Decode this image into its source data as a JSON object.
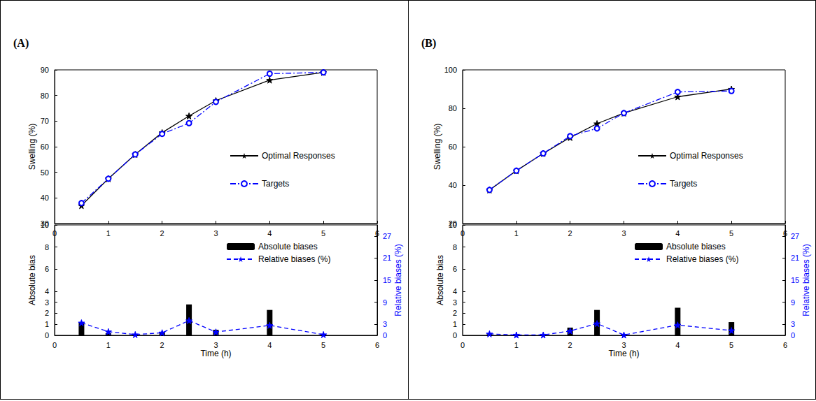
{
  "chart_data": [
    {
      "type": "line",
      "title": "(A)",
      "ylabel": "Swelling (%)",
      "x": [
        0.5,
        1,
        1.5,
        2,
        2.5,
        3,
        4,
        5
      ],
      "series": [
        {
          "name": "Optimal Responses",
          "color": "#000000",
          "marker": "star",
          "line_style": "solid",
          "values": [
            37,
            47.5,
            57,
            65.5,
            72,
            78,
            86,
            89
          ]
        },
        {
          "name": "Targets",
          "color": "#0000ff",
          "marker": "circle",
          "line_style": "dashdot",
          "values": [
            38,
            47.5,
            57,
            65,
            69.2,
            77.5,
            88.5,
            89
          ]
        }
      ],
      "xlim": [
        0,
        6
      ],
      "xticks": [
        0,
        1,
        2,
        3,
        4,
        5,
        6
      ],
      "ylim": [
        30,
        90
      ],
      "yticks": [
        30,
        40,
        50,
        60,
        70,
        80,
        90
      ],
      "grid": false,
      "legend": "right"
    },
    {
      "type": "bar",
      "xlabel": "Time (h)",
      "ylabel": "Absolute bias",
      "y2label": "Relative biases (%)",
      "x": [
        0.5,
        1,
        1.5,
        2,
        2.5,
        3,
        4,
        5
      ],
      "series": [
        {
          "name": "Absolute biases",
          "type": "bar",
          "color": "#000000",
          "values": [
            1.2,
            0.2,
            0.05,
            0.3,
            2.8,
            0.5,
            2.3,
            0.1
          ]
        },
        {
          "name": "Relative biases (%)",
          "type": "line",
          "axis": "y2",
          "color": "#0000ff",
          "marker": "star",
          "line_style": "dashed",
          "values": [
            3.4,
            1.0,
            0.2,
            0.7,
            4.0,
            0.9,
            2.7,
            0.2
          ]
        }
      ],
      "xlim": [
        0,
        6
      ],
      "xticks": [
        0,
        1,
        2,
        3,
        4,
        5,
        6
      ],
      "ylim": [
        0,
        10
      ],
      "yticks": [
        0,
        1,
        2,
        3,
        4,
        6,
        8,
        10
      ],
      "y2lim": [
        0,
        30
      ],
      "y2ticks": [
        0,
        3,
        9,
        15,
        21,
        27
      ],
      "grid": false,
      "legend": "upper right"
    },
    {
      "type": "line",
      "title": "(B)",
      "ylabel": "Swelling (%)",
      "x": [
        0.5,
        1,
        1.5,
        2,
        2.5,
        3,
        4,
        5
      ],
      "series": [
        {
          "name": "Optimal Responses",
          "color": "#000000",
          "marker": "star",
          "line_style": "solid",
          "values": [
            37.5,
            47.5,
            56.5,
            64.8,
            72,
            77.5,
            86,
            90
          ]
        },
        {
          "name": "Targets",
          "color": "#0000ff",
          "marker": "circle",
          "line_style": "dashdot",
          "values": [
            37.5,
            47.5,
            56.5,
            65.5,
            69.5,
            77.5,
            88.5,
            89
          ]
        }
      ],
      "xlim": [
        0,
        6
      ],
      "xticks": [
        0,
        1,
        2,
        3,
        4,
        5,
        6
      ],
      "ylim": [
        20,
        100
      ],
      "yticks": [
        20,
        40,
        60,
        80,
        100
      ],
      "grid": false,
      "legend": "right"
    },
    {
      "type": "bar",
      "xlabel": "Time (h)",
      "ylabel": "Absolute bias",
      "y2label": "Relative biases (%)",
      "x": [
        0.5,
        1,
        1.5,
        2,
        2.5,
        3,
        4,
        5
      ],
      "series": [
        {
          "name": "Absolute biases",
          "type": "bar",
          "color": "#000000",
          "values": [
            0.1,
            0.05,
            0.05,
            0.7,
            2.3,
            0.1,
            2.5,
            1.2
          ]
        },
        {
          "name": "Relative biases (%)",
          "type": "line",
          "axis": "y2",
          "color": "#0000ff",
          "marker": "star",
          "line_style": "dashed",
          "values": [
            0.4,
            0.1,
            0.1,
            1.2,
            3.2,
            0.1,
            2.8,
            1.3
          ]
        }
      ],
      "xlim": [
        0,
        6
      ],
      "xticks": [
        0,
        1,
        2,
        3,
        4,
        5,
        6
      ],
      "ylim": [
        0,
        10
      ],
      "yticks": [
        0,
        1,
        2,
        3,
        4,
        6,
        8,
        10
      ],
      "y2lim": [
        0,
        30
      ],
      "y2ticks": [
        0,
        3,
        9,
        15,
        21,
        27
      ],
      "grid": false,
      "legend": "upper right"
    }
  ]
}
